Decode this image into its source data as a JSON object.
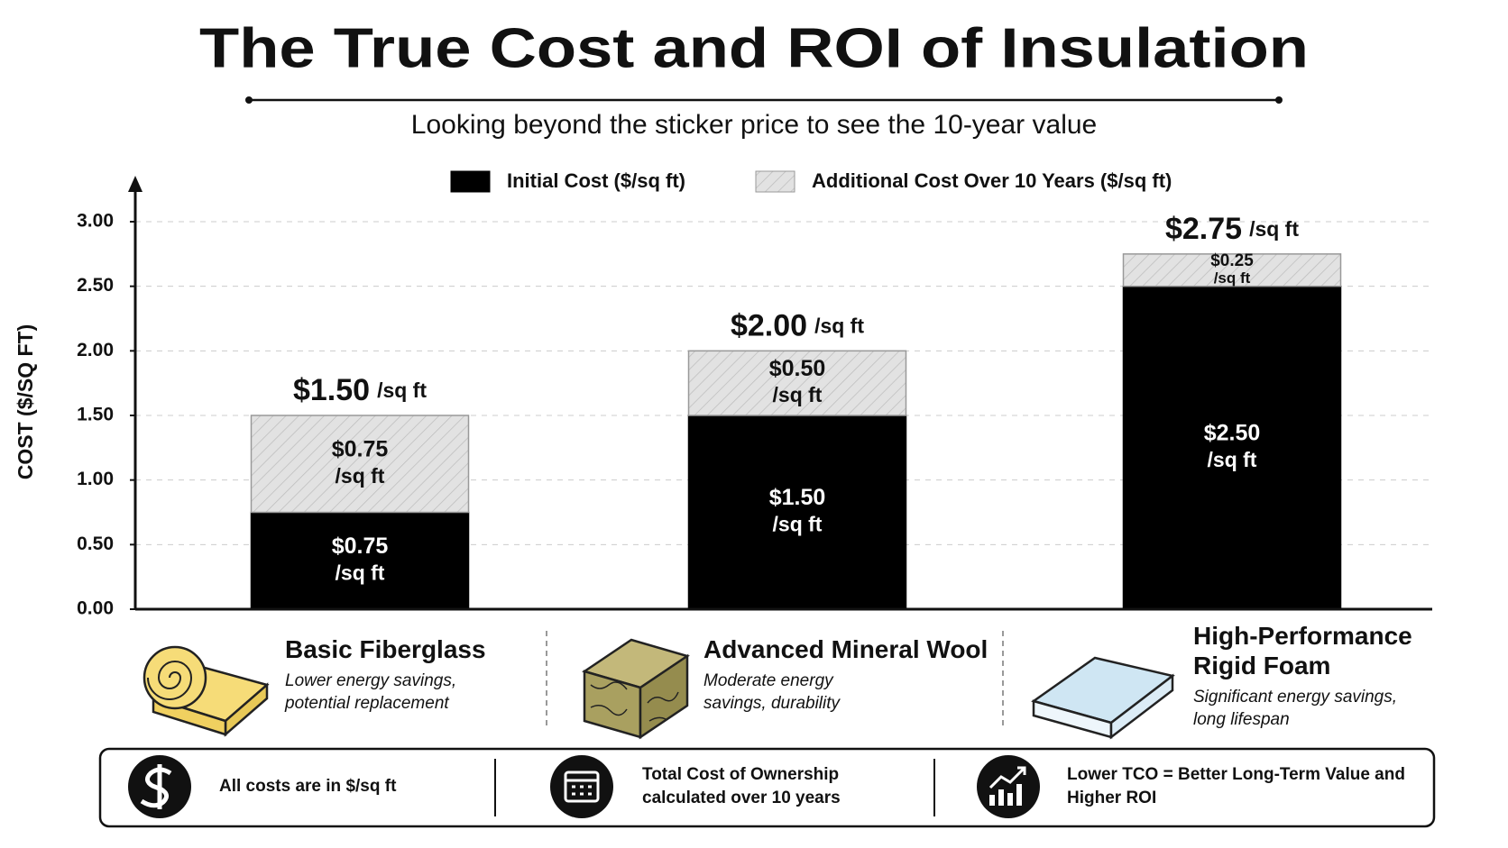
{
  "chart_data": {
    "type": "bar",
    "stacked": true,
    "title": "The True Cost and ROI of Insulation",
    "subtitle": "Looking beyond the sticker price to see the 10-year value",
    "ylabel": "COST ($/SQ FT)",
    "unit": "/sq ft",
    "categories": [
      "Basic Fiberglass",
      "Advanced Mineral Wool",
      "High-Performance Rigid Foam"
    ],
    "category_descriptions": [
      "Lower energy savings, potential replacement",
      "Moderate energy savings, durability",
      "Significant energy savings, long lifespan"
    ],
    "series": [
      {
        "name": "Initial Cost ($/sq ft)",
        "color": "#000000",
        "values": [
          0.75,
          1.5,
          2.5
        ],
        "value_labels": [
          "$0.75",
          "$1.50",
          "$2.50"
        ]
      },
      {
        "name": "Additional Cost Over 10 Years ($/sq ft)",
        "color": "#e2e2e2",
        "hatch": true,
        "values": [
          0.75,
          0.5,
          0.25
        ],
        "value_labels": [
          "$0.75",
          "$0.50",
          "$0.25"
        ]
      }
    ],
    "totals": {
      "values": [
        1.5,
        2.0,
        2.75
      ],
      "value_labels": [
        "$1.50",
        "$2.00",
        "$2.75"
      ]
    },
    "ylim": [
      0,
      3.3
    ],
    "yticks": [
      {
        "value": 0,
        "label": "0.00"
      },
      {
        "value": 0.5,
        "label": "0.50"
      },
      {
        "value": 1,
        "label": "1.00"
      },
      {
        "value": 1.5,
        "label": "1.50"
      },
      {
        "value": 2,
        "label": "2.00"
      },
      {
        "value": 2.5,
        "label": "2.50"
      },
      {
        "value": 3,
        "label": "3.00"
      }
    ],
    "grid": true,
    "legend": "top"
  },
  "footer": {
    "notes": [
      "All costs are in $/sq ft",
      "Total Cost of Ownership calculated over 10 years",
      "Lower TCO = Better Long-Term Value and Higher ROI"
    ]
  }
}
